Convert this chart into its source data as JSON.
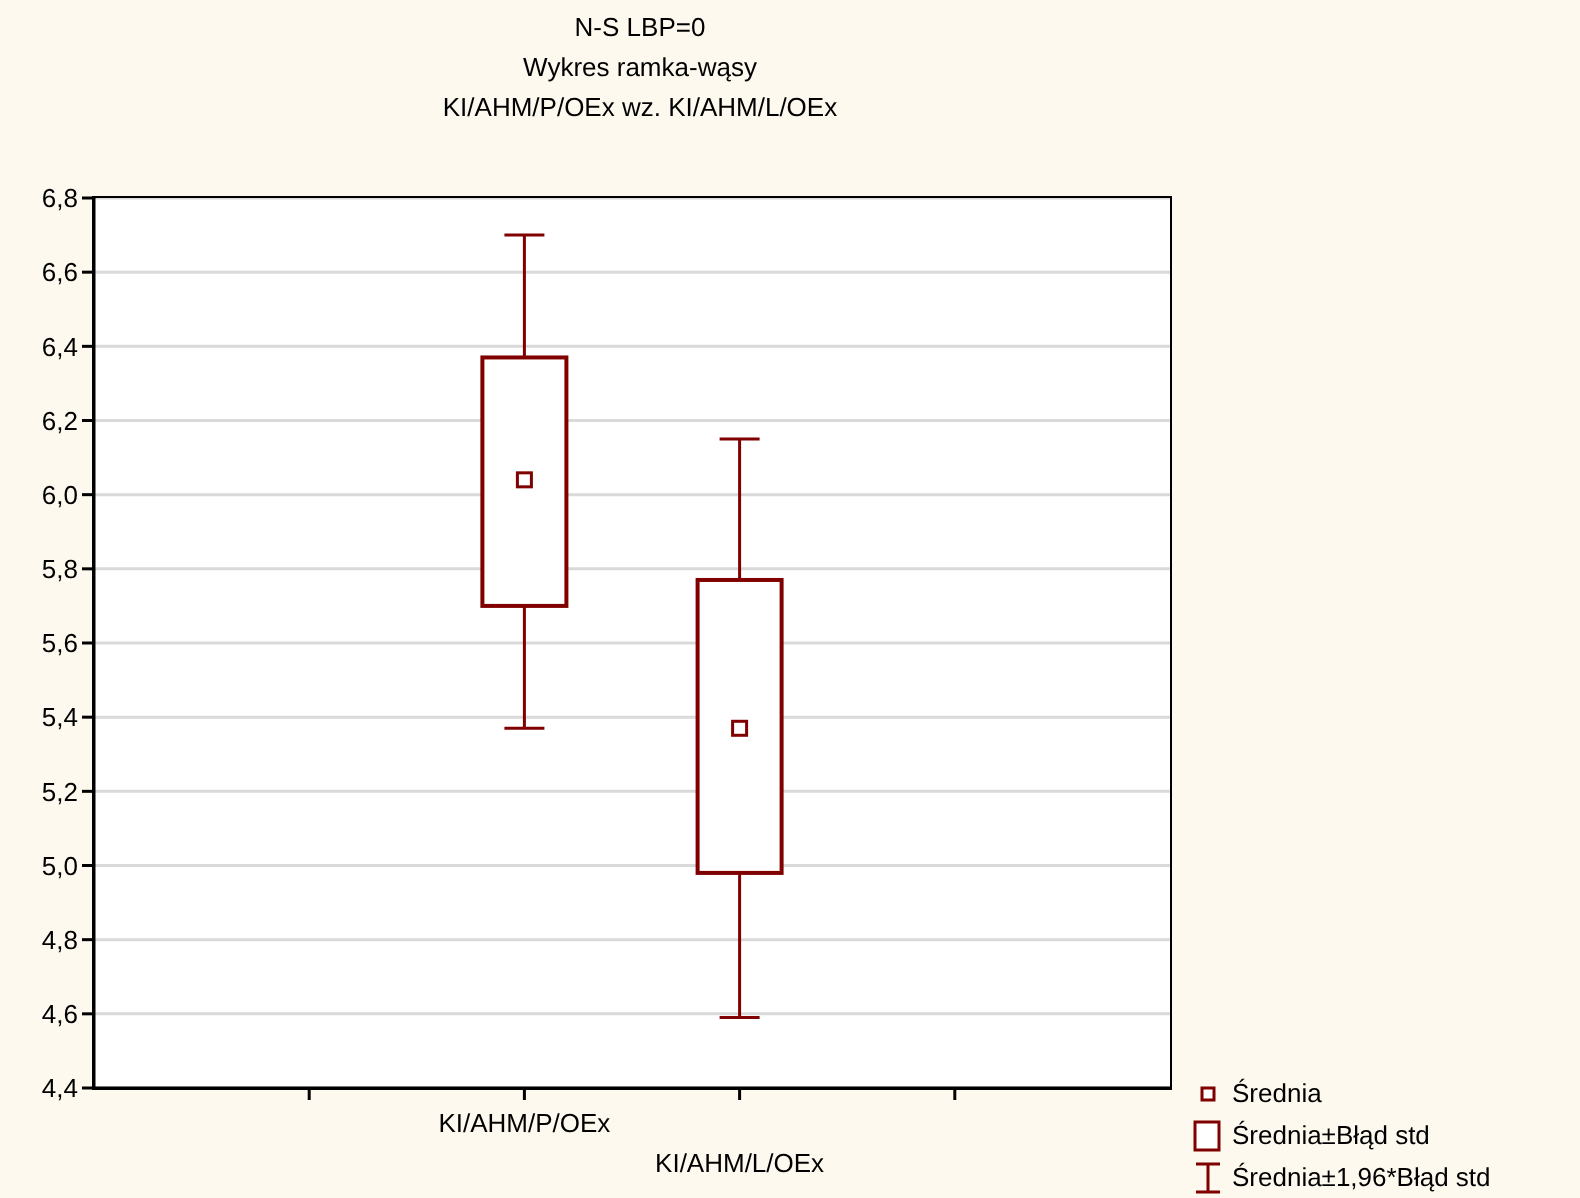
{
  "chart_data": {
    "type": "box",
    "title": "N-S LBP=0",
    "subtitle": "Wykres ramka-wąsy",
    "annotations": [
      "KI/AHM/P/OEx wz. KI/AHM/L/OEx",
      "Średnia",
      "Średnia±Błąd std",
      "Średnia±1,96*Błąd std"
    ],
    "categories": [
      "KI/AHM/P/OEx",
      "KI/AHM/L/OEx"
    ],
    "boxes": [
      {
        "low": 5.37,
        "q1": 5.7,
        "median": 6.04,
        "q3": 6.37,
        "high": 6.7
      },
      {
        "low": 4.59,
        "q1": 4.98,
        "median": 5.37,
        "q3": 5.77,
        "high": 6.15
      }
    ],
    "color": "#800000",
    "marker": "square",
    "grid": "y",
    "ylim": [
      4.4,
      6.8
    ],
    "yticks": [
      {
        "value": 4.4,
        "label": "4,4"
      },
      {
        "value": 4.6,
        "label": "4,6"
      },
      {
        "value": 4.8,
        "label": "4,8"
      },
      {
        "value": 5.0,
        "label": "5,0"
      },
      {
        "value": 5.2,
        "label": "5,2"
      },
      {
        "value": 5.4,
        "label": "5,4"
      },
      {
        "value": 5.6,
        "label": "5,6"
      },
      {
        "value": 5.8,
        "label": "5,8"
      },
      {
        "value": 6.0,
        "label": "6,0"
      },
      {
        "value": 6.2,
        "label": "6,2"
      },
      {
        "value": 6.4,
        "label": "6,4"
      },
      {
        "value": 6.6,
        "label": "6,6"
      },
      {
        "value": 6.8,
        "label": "6,8"
      }
    ]
  }
}
